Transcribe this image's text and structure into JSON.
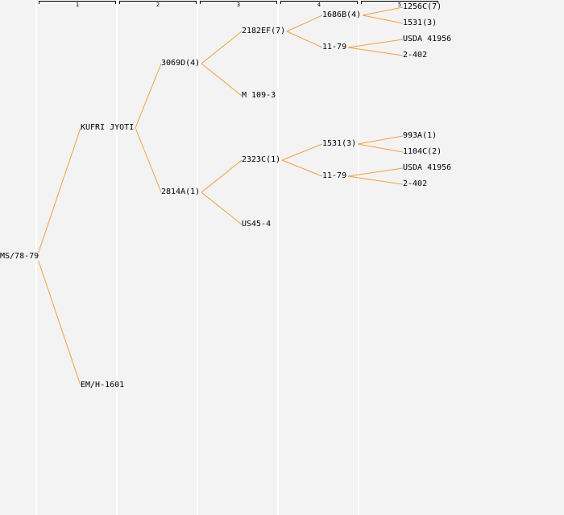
{
  "generations": [
    "1",
    "2",
    "3",
    "4",
    "5"
  ],
  "colors": {
    "edge": "#f0a040",
    "background": "#f3f3f3",
    "stripe": "#ffffff",
    "text": "#000000"
  },
  "pedigree": {
    "label": "MS/78-79",
    "children": [
      {
        "label": "KUFRI JYOTI",
        "children": [
          {
            "label": "3069D(4)",
            "children": [
              {
                "label": "2182EF(7)",
                "children": [
                  {
                    "label": "1686B(4)",
                    "children": [
                      {
                        "label": "1256C(7)"
                      },
                      {
                        "label": "1531(3)"
                      }
                    ]
                  },
                  {
                    "label": "11-79",
                    "children": [
                      {
                        "label": "USDA 41956"
                      },
                      {
                        "label": "2-402"
                      }
                    ]
                  }
                ]
              },
              {
                "label": "M 109-3"
              }
            ]
          },
          {
            "label": "2814A(1)",
            "children": [
              {
                "label": "2323C(1)",
                "children": [
                  {
                    "label": "1531(3)",
                    "children": [
                      {
                        "label": "993A(1)"
                      },
                      {
                        "label": "1104C(2)"
                      }
                    ]
                  },
                  {
                    "label": "11-79",
                    "children": [
                      {
                        "label": "USDA 41956"
                      },
                      {
                        "label": "2-402"
                      }
                    ]
                  }
                ]
              },
              {
                "label": "US45-4"
              }
            ]
          }
        ]
      },
      {
        "label": "EM/H-1601"
      }
    ]
  }
}
